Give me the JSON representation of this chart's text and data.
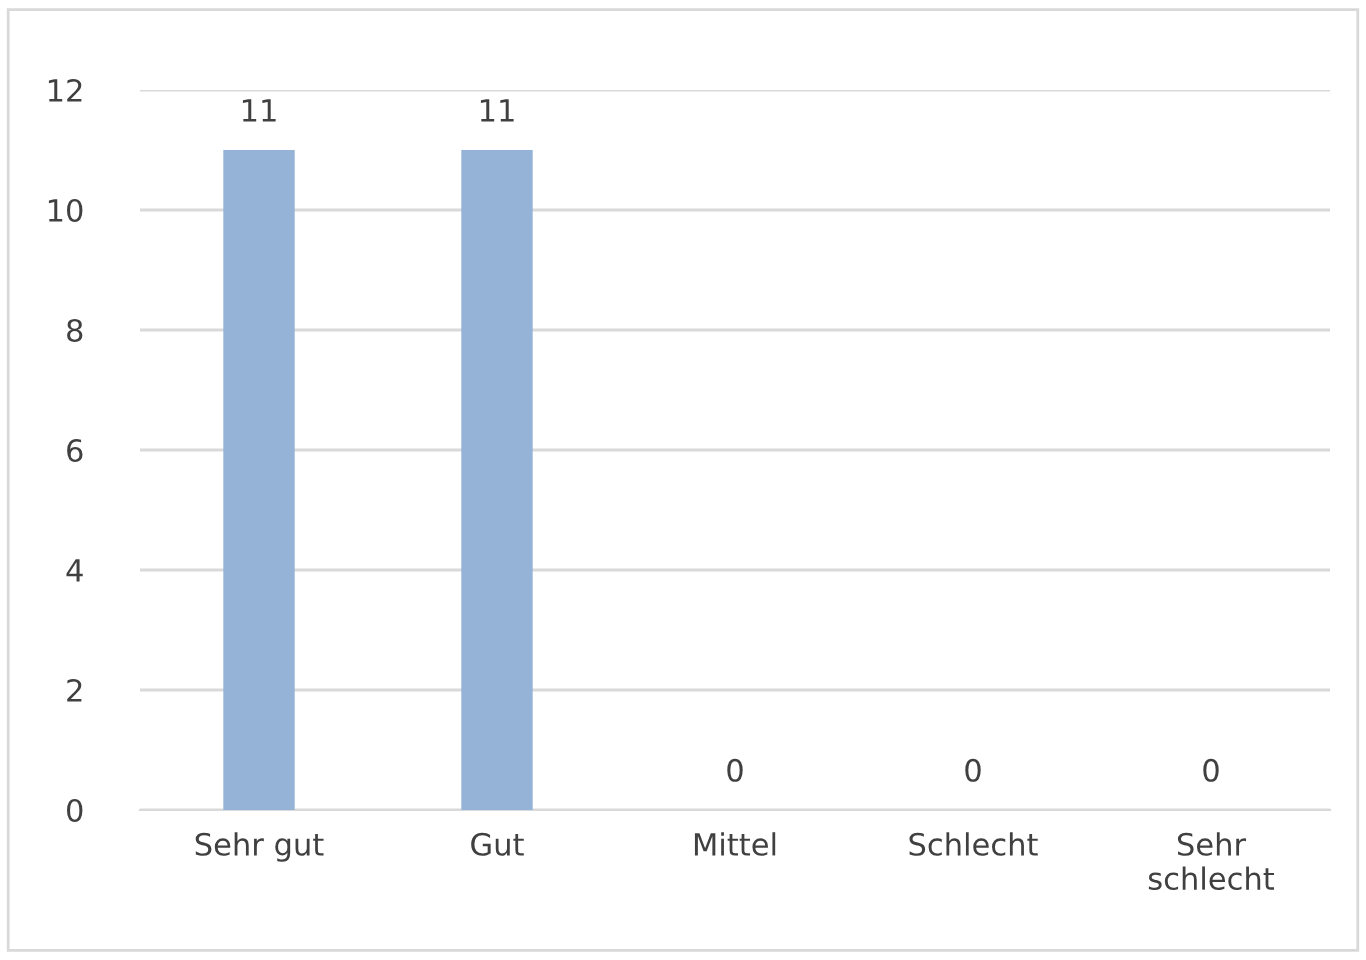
{
  "chart_data": {
    "type": "bar",
    "categories": [
      "Sehr gut",
      "Gut",
      "Mittel",
      "Schlecht",
      "Sehr\nschlecht"
    ],
    "values": [
      11,
      11,
      0,
      0,
      0
    ],
    "color": "#95b3d7",
    "ylim": [
      0,
      12
    ],
    "yticks": [
      0,
      2,
      4,
      6,
      8,
      10,
      12
    ],
    "grid": "y",
    "data_labels": true
  }
}
